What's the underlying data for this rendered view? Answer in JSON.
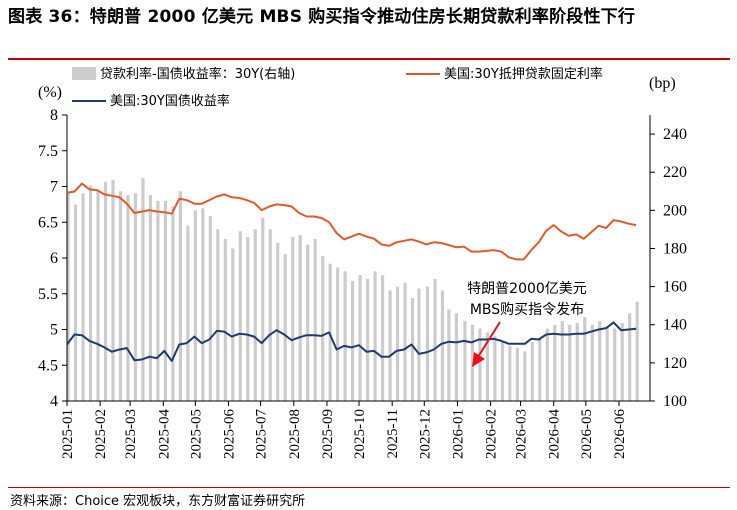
{
  "title": "图表 36：特朗普 2000 亿美元 MBS 购买指令推动住房长期贷款利率阶段性下行",
  "source": "资料来源：Choice 宏观板块，东方财富证券研究所",
  "colors": {
    "spread": "#cccccc",
    "mortgage": "#e05a2b",
    "treasury": "#1f3a6e",
    "arrow": "#e8101a"
  },
  "chart_data": {
    "type": "line",
    "left_unit": "(%)",
    "right_unit": "(bp)",
    "ylim": [
      4,
      8
    ],
    "y2lim": [
      100,
      250
    ],
    "yticks": [
      "4",
      "4.5",
      "5",
      "5.5",
      "6",
      "6.5",
      "7",
      "7.5",
      "8"
    ],
    "y2ticks": [
      "100",
      "120",
      "140",
      "160",
      "180",
      "200",
      "220",
      "240"
    ],
    "x_range": [
      "2025-01",
      "2026-06"
    ],
    "xticks": [
      "2025-01",
      "2025-02",
      "2025-03",
      "2025-04",
      "2025-05",
      "2025-06",
      "2025-07",
      "2025-08",
      "2025-09",
      "2025-10",
      "2025-11",
      "2025-12",
      "2026-01",
      "2026-02",
      "2026-03",
      "2026-04",
      "2026-05",
      "2026-06"
    ],
    "legend": [
      "贷款利率-国债收益率：30Y(右轴)",
      "美国:30Y抵押贷款固定利率",
      "美国:30Y国债收益率"
    ],
    "annotation": [
      "特朗普2000亿美元",
      "MBS购买指令发布"
    ],
    "series": [
      {
        "name": "贷款利率-国债收益率：30Y(右轴)",
        "kind": "bar",
        "axis": "right",
        "x": [
          "2025-01-02",
          "2025-01-09",
          "2025-01-16",
          "2025-01-23",
          "2025-01-30",
          "2025-02-06",
          "2025-02-13",
          "2025-02-20",
          "2025-02-27",
          "2025-03-06",
          "2025-03-13",
          "2025-03-20",
          "2025-03-27",
          "2025-04-03",
          "2025-04-10",
          "2025-04-17",
          "2025-04-24",
          "2025-05-01",
          "2025-05-08",
          "2025-05-15",
          "2025-05-22",
          "2025-05-29",
          "2025-06-05",
          "2025-06-12",
          "2025-06-19",
          "2025-06-26",
          "2025-07-03",
          "2025-07-10",
          "2025-07-17",
          "2025-07-24",
          "2025-07-31",
          "2025-08-07",
          "2025-08-14",
          "2025-08-21",
          "2025-08-28",
          "2025-09-04",
          "2025-09-11",
          "2025-09-18",
          "2025-09-25",
          "2025-10-02",
          "2025-10-09",
          "2025-10-16",
          "2025-10-23",
          "2025-10-30",
          "2025-11-06",
          "2025-11-13",
          "2025-11-20",
          "2025-11-26",
          "2025-12-04",
          "2025-12-11",
          "2025-12-18",
          "2025-12-24",
          "2025-12-31",
          "2026-01-08",
          "2026-01-15",
          "2026-01-22",
          "2026-01-29",
          "2026-02-05",
          "2026-02-12",
          "2026-02-19",
          "2026-02-26",
          "2026-03-05",
          "2026-03-12",
          "2026-03-19",
          "2026-03-26",
          "2026-04-02",
          "2026-04-09",
          "2026-04-16",
          "2026-04-23",
          "2026-04-30",
          "2026-05-07",
          "2026-05-14",
          "2026-05-21",
          "2026-05-28",
          "2026-06-04",
          "2026-06-11",
          "2026-06-18"
        ],
        "values": [
          210,
          203,
          209,
          213,
          210,
          215,
          216,
          210,
          208,
          209,
          217,
          208,
          205,
          205,
          202,
          210,
          192,
          200,
          201,
          197,
          190,
          185,
          180,
          189,
          186,
          190,
          196,
          190,
          183,
          177,
          186,
          187,
          182,
          185,
          176,
          172,
          170,
          168,
          163,
          166,
          164,
          168,
          166,
          158,
          160,
          162,
          154,
          159,
          160,
          164,
          158,
          148,
          146,
          142,
          140,
          138,
          136,
          134,
          131,
          129,
          128,
          126,
          131,
          133,
          138,
          140,
          142,
          140,
          141,
          144,
          140,
          142,
          139,
          138,
          141,
          146,
          152
        ]
      },
      {
        "name": "美国:30Y抵押贷款固定利率",
        "kind": "line",
        "axis": "left",
        "x": [
          "2025-01-01",
          "2025-01-08",
          "2025-01-15",
          "2025-01-22",
          "2025-01-29",
          "2025-02-05",
          "2025-02-12",
          "2025-02-19",
          "2025-02-26",
          "2025-03-05",
          "2025-03-12",
          "2025-03-19",
          "2025-03-26",
          "2025-04-02",
          "2025-04-09",
          "2025-04-16",
          "2025-04-23",
          "2025-04-30",
          "2025-05-07",
          "2025-05-14",
          "2025-05-21",
          "2025-05-28",
          "2025-06-04",
          "2025-06-11",
          "2025-06-18",
          "2025-06-25",
          "2025-07-02",
          "2025-07-09",
          "2025-07-16",
          "2025-07-23",
          "2025-07-30",
          "2025-08-06",
          "2025-08-13",
          "2025-08-20",
          "2025-08-27",
          "2025-09-03",
          "2025-09-10",
          "2025-09-17",
          "2025-09-24",
          "2025-10-01",
          "2025-10-08",
          "2025-10-15",
          "2025-10-22",
          "2025-10-29",
          "2025-11-05",
          "2025-11-12",
          "2025-11-19",
          "2025-11-26",
          "2025-12-03",
          "2025-12-10",
          "2025-12-17",
          "2025-12-24",
          "2025-12-31",
          "2026-01-07",
          "2026-01-14",
          "2026-01-21",
          "2026-01-28",
          "2026-02-04",
          "2026-02-11",
          "2026-02-18",
          "2026-02-25",
          "2026-03-04",
          "2026-03-11",
          "2026-03-18",
          "2026-03-25",
          "2026-04-01",
          "2026-04-08",
          "2026-04-15",
          "2026-04-22",
          "2026-04-29",
          "2026-05-06",
          "2026-05-13",
          "2026-05-20",
          "2026-05-27",
          "2026-06-03",
          "2026-06-10",
          "2026-06-17"
        ],
        "values": [
          6.91,
          6.93,
          7.04,
          6.96,
          6.95,
          6.89,
          6.87,
          6.85,
          6.76,
          6.63,
          6.65,
          6.67,
          6.65,
          6.64,
          6.62,
          6.83,
          6.81,
          6.76,
          6.76,
          6.81,
          6.86,
          6.89,
          6.85,
          6.84,
          6.81,
          6.77,
          6.67,
          6.72,
          6.75,
          6.74,
          6.72,
          6.63,
          6.58,
          6.58,
          6.56,
          6.5,
          6.35,
          6.26,
          6.3,
          6.34,
          6.3,
          6.27,
          6.19,
          6.17,
          6.22,
          6.24,
          6.26,
          6.23,
          6.19,
          6.22,
          6.21,
          6.18,
          6.15,
          6.16,
          6.09,
          6.09,
          6.1,
          6.11,
          6.09,
          6.01,
          5.98,
          5.98,
          6.11,
          6.22,
          6.38,
          6.46,
          6.37,
          6.31,
          6.33,
          6.27,
          6.36,
          6.45,
          6.42,
          6.53,
          6.51,
          6.48,
          6.46
        ]
      },
      {
        "name": "美国:30Y国债收益率",
        "kind": "line",
        "axis": "left",
        "x": [
          "2025-01-01",
          "2025-01-08",
          "2025-01-15",
          "2025-01-22",
          "2025-01-29",
          "2025-02-05",
          "2025-02-12",
          "2025-02-19",
          "2025-02-26",
          "2025-03-05",
          "2025-03-12",
          "2025-03-19",
          "2025-03-26",
          "2025-04-02",
          "2025-04-09",
          "2025-04-16",
          "2025-04-23",
          "2025-04-30",
          "2025-05-07",
          "2025-05-14",
          "2025-05-21",
          "2025-05-28",
          "2025-06-04",
          "2025-06-11",
          "2025-06-18",
          "2025-06-25",
          "2025-07-02",
          "2025-07-09",
          "2025-07-16",
          "2025-07-23",
          "2025-07-30",
          "2025-08-06",
          "2025-08-13",
          "2025-08-20",
          "2025-08-27",
          "2025-09-03",
          "2025-09-10",
          "2025-09-17",
          "2025-09-24",
          "2025-10-01",
          "2025-10-08",
          "2025-10-15",
          "2025-10-22",
          "2025-10-29",
          "2025-11-05",
          "2025-11-12",
          "2025-11-19",
          "2025-11-26",
          "2025-12-03",
          "2025-12-10",
          "2025-12-17",
          "2025-12-24",
          "2025-12-31",
          "2026-01-07",
          "2026-01-14",
          "2026-01-21",
          "2026-01-28",
          "2026-02-04",
          "2026-02-11",
          "2026-02-18",
          "2026-02-25",
          "2026-03-05",
          "2026-03-11",
          "2026-03-18",
          "2026-03-25",
          "2026-04-01",
          "2026-04-08",
          "2026-04-15",
          "2026-04-22",
          "2026-04-29",
          "2026-05-06",
          "2026-05-13",
          "2026-05-20",
          "2026-05-27",
          "2026-06-03",
          "2026-06-10",
          "2026-06-17"
        ],
        "values": [
          4.79,
          4.93,
          4.92,
          4.84,
          4.8,
          4.75,
          4.69,
          4.72,
          4.74,
          4.57,
          4.58,
          4.62,
          4.6,
          4.7,
          4.56,
          4.79,
          4.81,
          4.9,
          4.81,
          4.86,
          4.98,
          4.97,
          4.9,
          4.94,
          4.93,
          4.9,
          4.81,
          4.92,
          4.99,
          4.93,
          4.85,
          4.89,
          4.92,
          4.92,
          4.91,
          4.96,
          4.72,
          4.77,
          4.75,
          4.78,
          4.69,
          4.7,
          4.62,
          4.62,
          4.7,
          4.72,
          4.79,
          4.66,
          4.68,
          4.72,
          4.8,
          4.83,
          4.82,
          4.84,
          4.82,
          4.86,
          4.86,
          4.87,
          4.84,
          4.8,
          4.8,
          4.8,
          4.87,
          4.86,
          4.93,
          4.94,
          4.93,
          4.93,
          4.94,
          4.94,
          4.97,
          5.0,
          5.02,
          5.1,
          4.99,
          5.0,
          5.01
        ]
      }
    ]
  }
}
